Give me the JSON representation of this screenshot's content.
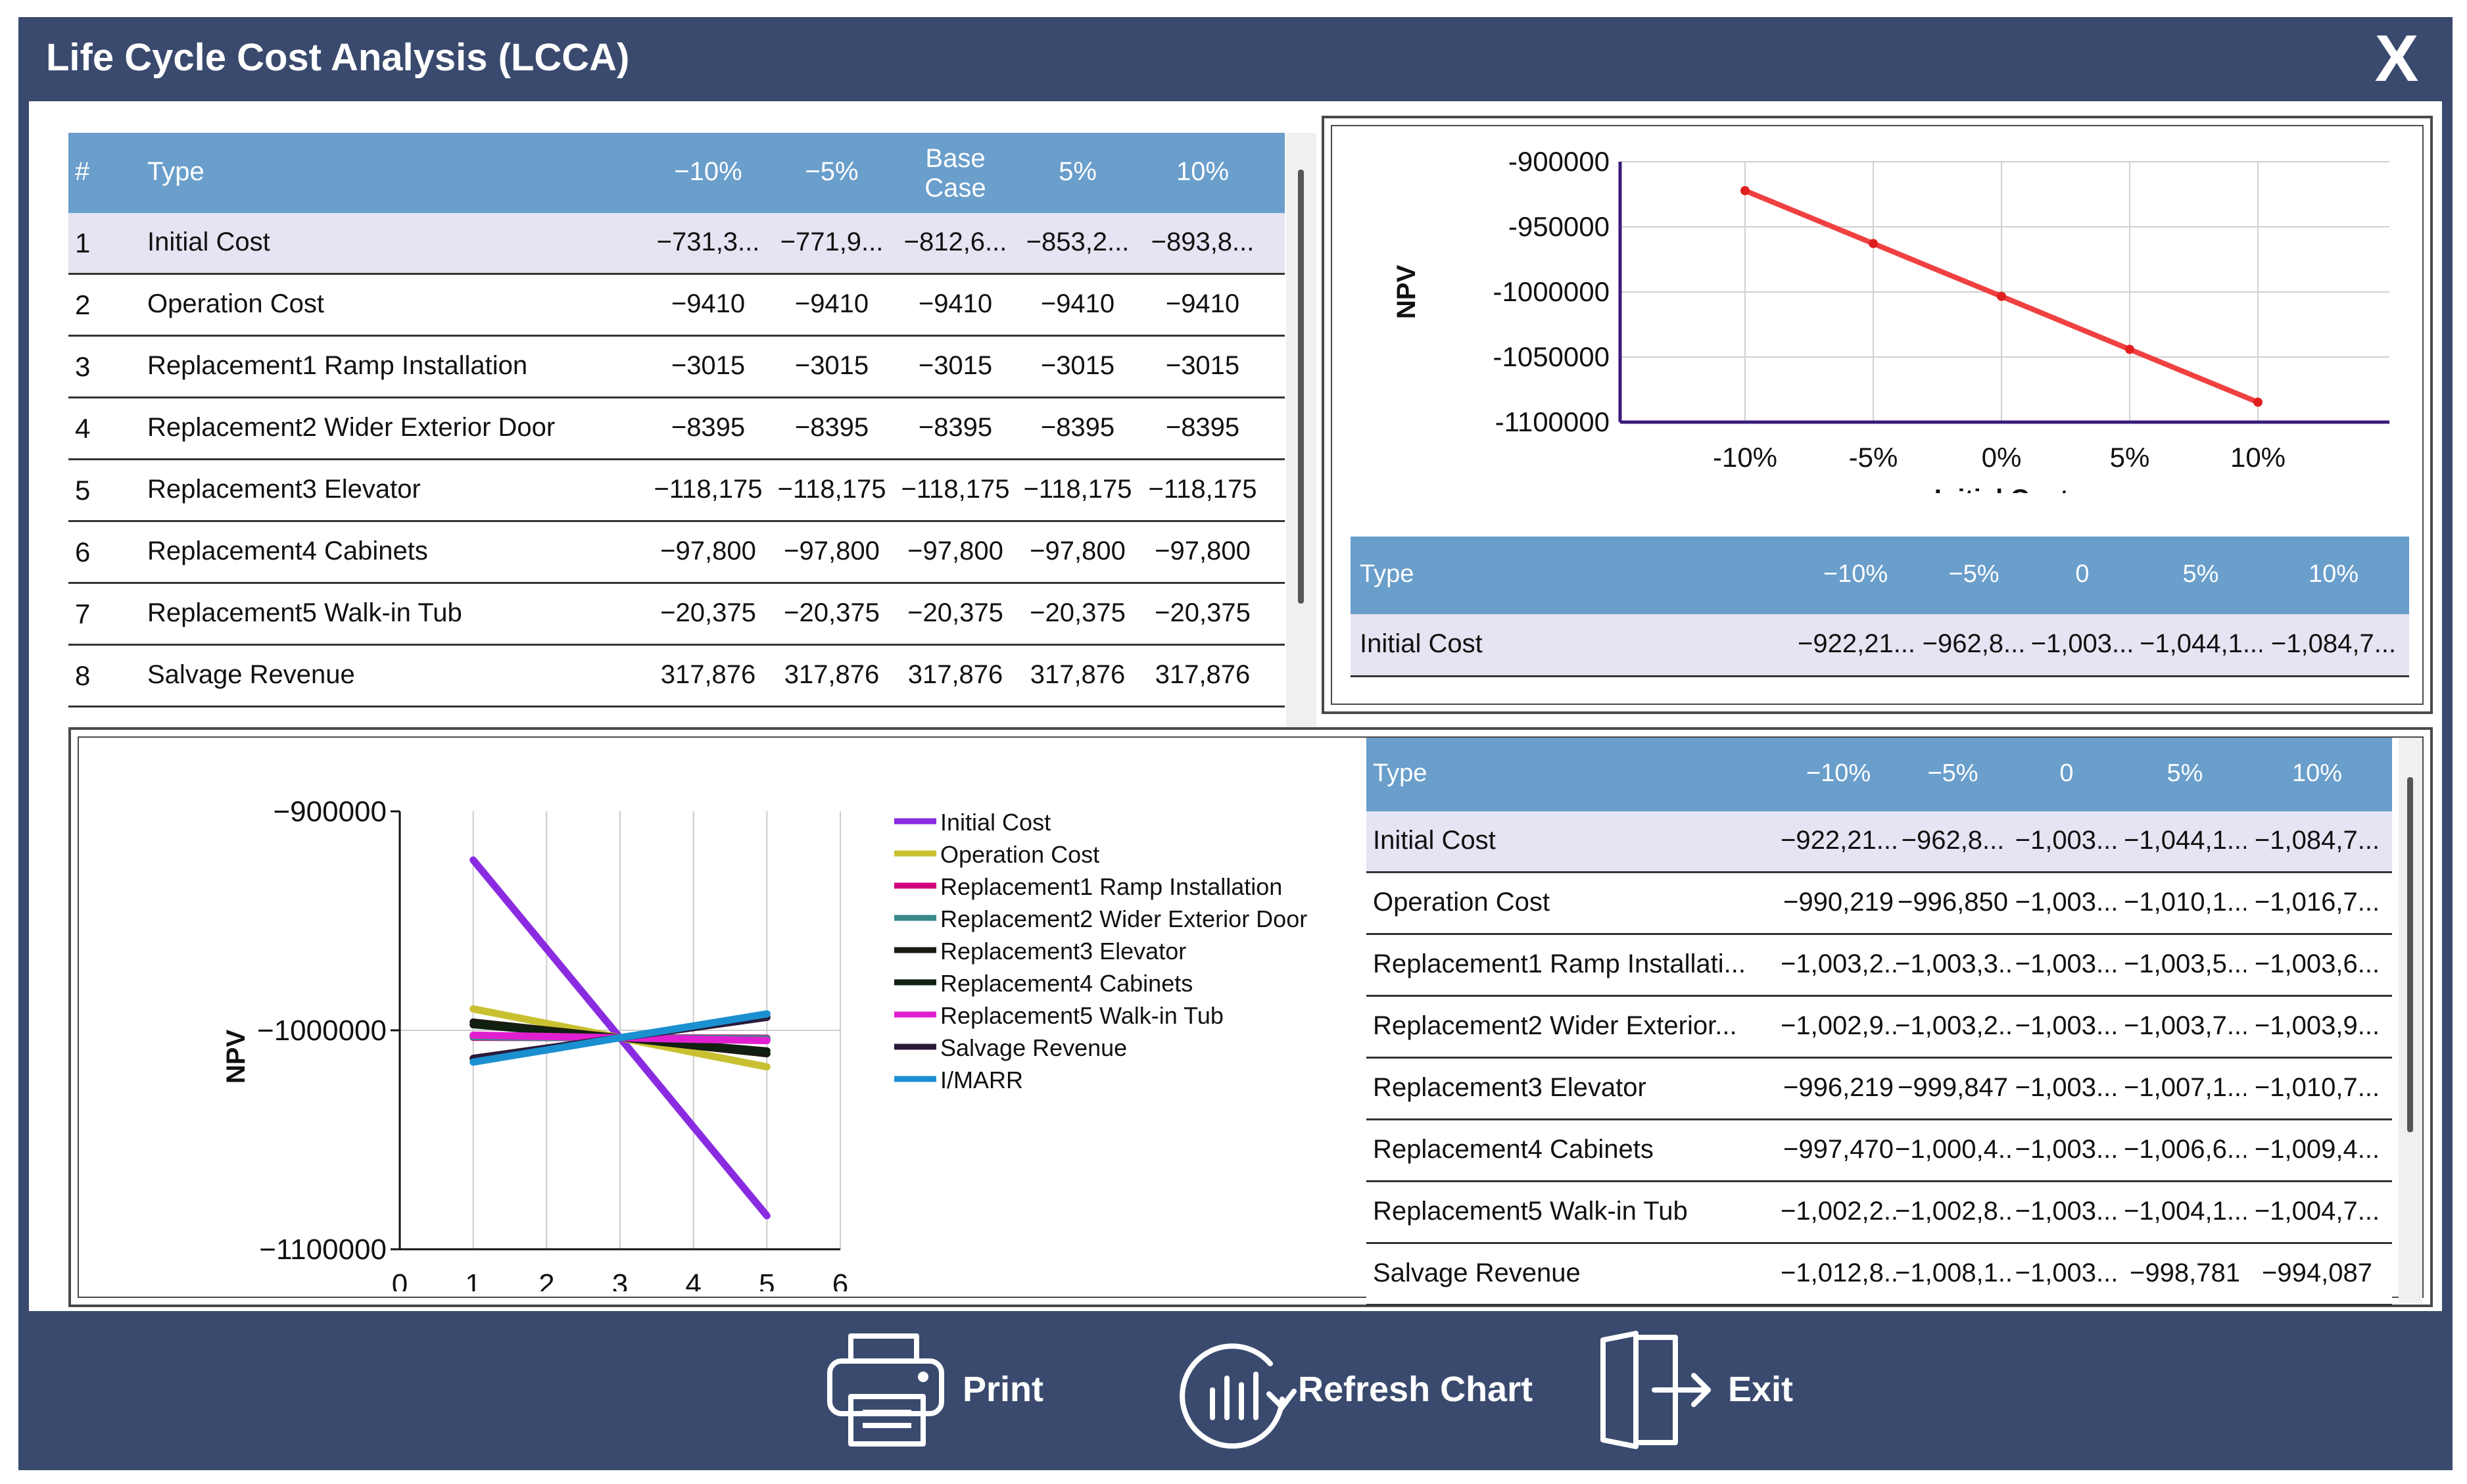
{
  "window": {
    "title": "Life Cycle Cost Analysis (LCCA)",
    "close_label": "X"
  },
  "main_table": {
    "headers": [
      "#",
      "Type",
      "−10%",
      "−5%",
      "Base\nCase",
      "5%",
      "10%"
    ],
    "rows": [
      [
        "1",
        "Initial Cost",
        "−731,3...",
        "−771,9...",
        "−812,6...",
        "−853,2...",
        "−893,8..."
      ],
      [
        "2",
        "Operation Cost",
        "−9410",
        "−9410",
        "−9410",
        "−9410",
        "−9410"
      ],
      [
        "3",
        "Replacement1 Ramp Installation",
        "−3015",
        "−3015",
        "−3015",
        "−3015",
        "−3015"
      ],
      [
        "4",
        "Replacement2  Wider Exterior Door",
        "−8395",
        "−8395",
        "−8395",
        "−8395",
        "−8395"
      ],
      [
        "5",
        "Replacement3  Elevator",
        "−118,175",
        "−118,175",
        "−118,175",
        "−118,175",
        "−118,175"
      ],
      [
        "6",
        "Replacement4  Cabinets",
        "−97,800",
        "−97,800",
        "−97,800",
        "−97,800",
        "−97,800"
      ],
      [
        "7",
        "Replacement5  Walk-in Tub",
        "−20,375",
        "−20,375",
        "−20,375",
        "−20,375",
        "−20,375"
      ],
      [
        "8",
        "Salvage Revenue",
        "317,876",
        "317,876",
        "317,876",
        "317,876",
        "317,876"
      ]
    ]
  },
  "single_table": {
    "headers": [
      "Type",
      "−10%",
      "−5%",
      "0",
      "5%",
      "10%"
    ],
    "rows": [
      [
        "Initial Cost",
        "−922,21...",
        "−962,8...",
        "−1,003...",
        "−1,044,1...",
        "−1,084,7..."
      ]
    ]
  },
  "sens_table": {
    "headers": [
      "Type",
      "−10%",
      "−5%",
      "0",
      "5%",
      "10%"
    ],
    "rows": [
      [
        "Initial Cost",
        "−922,21...",
        "−962,8...",
        "−1,003...",
        "−1,044,1...",
        "−1,084,7..."
      ],
      [
        "Operation Cost",
        "−990,219",
        "−996,850",
        "−1,003...",
        "−1,010,1...",
        "−1,016,7..."
      ],
      [
        "Replacement1 Ramp Installati...",
        "−1,003,2...",
        "−1,003,3...",
        "−1,003...",
        "−1,003,5...",
        "−1,003,6..."
      ],
      [
        "Replacement2  Wider Exterior...",
        "−1,002,9...",
        "−1,003,2...",
        "−1,003...",
        "−1,003,7...",
        "−1,003,9..."
      ],
      [
        "Replacement3  Elevator",
        "−996,219",
        "−999,847",
        "−1,003...",
        "−1,007,1...",
        "−1,010,7..."
      ],
      [
        " Replacement4 Cabinets",
        "−997,470",
        "−1,000,4...",
        "−1,003...",
        "−1,006,6...",
        "−1,009,4..."
      ],
      [
        "Replacement5  Walk-in Tub",
        "−1,002,2...",
        "−1,002,8...",
        "−1,003...",
        "−1,004,1...",
        "−1,004,7..."
      ],
      [
        "Salvage Revenue",
        "−1,012,8...",
        "−1,008,1...",
        "−1,003...",
        "−998,781",
        "−994,087"
      ]
    ]
  },
  "footer": {
    "print_label": "Print",
    "refresh_label": "Refresh Chart",
    "exit_label": "Exit"
  },
  "colors": {
    "window": "#3a4a6e",
    "header": "#6a9ecb",
    "selected_row": "#e4e4f2",
    "chart_line": "#f04040"
  },
  "chart_data": [
    {
      "type": "line",
      "title": "",
      "xlabel": "Initial Cost",
      "ylabel": "NPV",
      "categories": [
        "-10%",
        "-5%",
        "0%",
        "5%",
        "10%"
      ],
      "ylim": [
        -1100000,
        -900000
      ],
      "yticks": [
        -900000,
        -950000,
        -1000000,
        -1050000,
        -1100000
      ],
      "ytick_labels": [
        "-900000",
        "-950000",
        "-1000000",
        "-1050000",
        "-1100000"
      ],
      "series": [
        {
          "name": "Initial Cost",
          "values": [
            -922210,
            -962800,
            -1003400,
            -1044100,
            -1084700
          ],
          "color": "#f04040"
        }
      ]
    },
    {
      "type": "line",
      "xlabel": "",
      "ylabel": "NPV",
      "x": [
        1,
        2,
        3,
        4,
        5
      ],
      "xlim": [
        0,
        6
      ],
      "xticks": [
        "0",
        "1",
        "2",
        "3",
        "4",
        "5",
        "6"
      ],
      "ylim": [
        -1100000,
        -900000
      ],
      "yticks": [
        -900000,
        -1000000,
        -1100000
      ],
      "ytick_labels": [
        "−900000",
        "−1000000",
        "−1100000"
      ],
      "legend": "right",
      "series": [
        {
          "name": "Initial Cost",
          "color": "#8a2be2",
          "values": [
            -922210,
            -962800,
            -1003400,
            -1044100,
            -1084700
          ]
        },
        {
          "name": "Operation Cost",
          "color": "#c8c030",
          "values": [
            -990219,
            -996850,
            -1003400,
            -1010100,
            -1016700
          ]
        },
        {
          "name": "Replacement1 Ramp Installation",
          "color": "#d0007a",
          "values": [
            -1003200,
            -1003300,
            -1003400,
            -1003500,
            -1003600
          ]
        },
        {
          "name": "Replacement2  Wider Exterior Door",
          "color": "#3a8a8a",
          "values": [
            -1002900,
            -1003200,
            -1003400,
            -1003700,
            -1003900
          ]
        },
        {
          "name": "Replacement3  Elevator",
          "color": "#1a1a10",
          "values": [
            -996219,
            -999847,
            -1003400,
            -1007100,
            -1010700
          ]
        },
        {
          "name": "Replacement4  Cabinets",
          "color": "#102010",
          "values": [
            -997470,
            -1000400,
            -1003400,
            -1006600,
            -1009400
          ]
        },
        {
          "name": "Replacement5  Walk-in Tub",
          "color": "#e020d0",
          "values": [
            -1002200,
            -1002800,
            -1003400,
            -1004100,
            -1004700
          ]
        },
        {
          "name": "Salvage Revenue",
          "color": "#2a1a3a",
          "values": [
            -1012800,
            -1008100,
            -1003400,
            -998781,
            -994087
          ]
        },
        {
          "name": "I/MARR",
          "color": "#1a90d0",
          "values": [
            -1014500,
            -1009000,
            -1003400,
            -998000,
            -992500
          ]
        }
      ]
    }
  ]
}
